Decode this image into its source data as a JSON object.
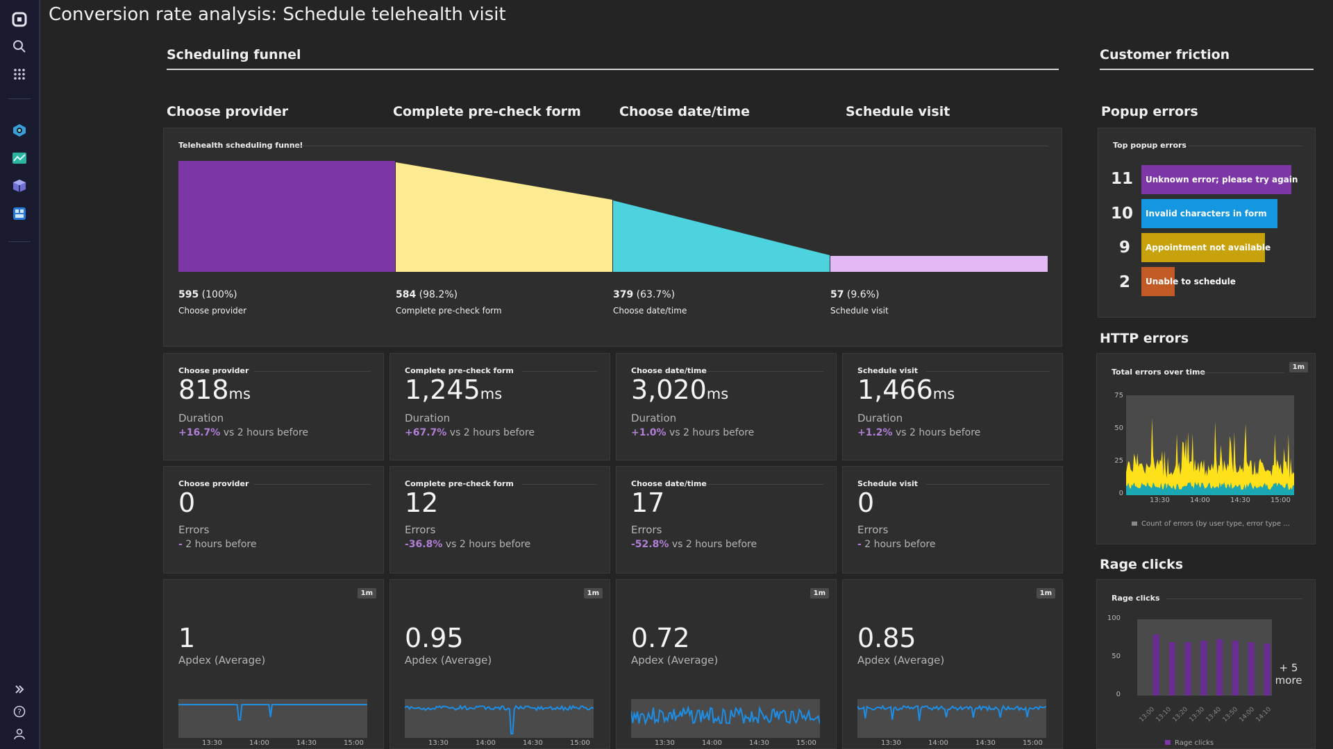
{
  "page_title": "Conversion rate analysis: Schedule telehealth visit",
  "sections": {
    "funnel": "Scheduling funnel",
    "friction": "Customer friction"
  },
  "columns": [
    "Choose provider",
    "Complete pre-check form",
    "Choose date/time",
    "Schedule visit"
  ],
  "funnel_panel": {
    "title": "Telehealth scheduling funnel",
    "steps": [
      {
        "count": "595",
        "pct": " (100%)",
        "name": "Choose provider",
        "color": "#7c36a5"
      },
      {
        "count": "584",
        "pct": " (98.2%)",
        "name": "Complete pre-check form",
        "color": "#fdeb92"
      },
      {
        "count": "379",
        "pct": " (63.7%)",
        "name": "Choose date/time",
        "color": "#4dd3de"
      },
      {
        "count": "57",
        "pct": " (9.6%)",
        "name": "Schedule visit",
        "color": "#e3b9f5"
      }
    ]
  },
  "duration_tiles": [
    {
      "title": "Choose provider",
      "value": "818",
      "unit": "ms",
      "label": "Duration",
      "delta": "+16.7%",
      "delta_suffix": " vs 2 hours before"
    },
    {
      "title": "Complete pre-check form",
      "value": "1,245",
      "unit": "ms",
      "label": "Duration",
      "delta": "+67.7%",
      "delta_suffix": " vs 2 hours before"
    },
    {
      "title": "Choose date/time",
      "value": "3,020",
      "unit": "ms",
      "label": "Duration",
      "delta": "+1.0%",
      "delta_suffix": " vs 2 hours before"
    },
    {
      "title": "Schedule visit",
      "value": "1,466",
      "unit": "ms",
      "label": "Duration",
      "delta": "+1.2%",
      "delta_suffix": " vs 2 hours before"
    }
  ],
  "error_tiles": [
    {
      "title": "Choose provider",
      "value": "0",
      "label": "Errors",
      "delta": "-",
      "delta_suffix": " 2 hours before"
    },
    {
      "title": "Complete pre-check form",
      "value": "12",
      "label": "Errors",
      "delta": "-36.8%",
      "delta_suffix": " vs 2 hours before"
    },
    {
      "title": "Choose date/time",
      "value": "17",
      "label": "Errors",
      "delta": "-52.8%",
      "delta_suffix": " vs 2 hours before"
    },
    {
      "title": "Schedule visit",
      "value": "0",
      "label": "Errors",
      "delta": "-",
      "delta_suffix": " 2 hours before"
    }
  ],
  "apdex_tiles": [
    {
      "value": "1",
      "label": "Apdex (Average)",
      "badge": "1m",
      "ticks": [
        "13:30",
        "14:00",
        "14:30",
        "15:00"
      ]
    },
    {
      "value": "0.95",
      "label": "Apdex (Average)",
      "badge": "1m",
      "ticks": [
        "13:30",
        "14:00",
        "14:30",
        "15:00"
      ]
    },
    {
      "value": "0.72",
      "label": "Apdex (Average)",
      "badge": "1m",
      "ticks": [
        "13:30",
        "14:00",
        "14:30",
        "15:00"
      ]
    },
    {
      "value": "0.85",
      "label": "Apdex (Average)",
      "badge": "1m",
      "ticks": [
        "13:30",
        "14:00",
        "14:30",
        "15:00"
      ]
    }
  ],
  "popup_errors": {
    "heading": "Popup errors",
    "panel_title": "Top popup errors",
    "items": [
      {
        "count": "11",
        "label": "Unknown error; please try again",
        "color": "#7c36a5"
      },
      {
        "count": "10",
        "label": "Invalid characters in form",
        "color": "#1496e0"
      },
      {
        "count": "9",
        "label": "Appointment not available",
        "color": "#c8a20d"
      },
      {
        "count": "2",
        "label": "Unable to schedule",
        "color": "#c25a26"
      }
    ]
  },
  "http_errors": {
    "heading": "HTTP errors",
    "panel_title": "Total errors over time",
    "badge": "1m",
    "y_ticks": [
      "75",
      "50",
      "25",
      "0"
    ],
    "x_ticks": [
      "13:30",
      "14:00",
      "14:30",
      "15:00"
    ],
    "legend": "Count of errors (by user type, error type ..."
  },
  "rage_clicks": {
    "heading": "Rage clicks",
    "panel_title": "Rage clicks",
    "y_ticks": [
      "100",
      "50",
      "0"
    ],
    "x_ticks": [
      "13:00",
      "13:10",
      "13:20",
      "13:30",
      "13:40",
      "13:50",
      "14:00",
      "14:10"
    ],
    "more_count": "+ 5",
    "more_label": "more",
    "legend": "Rage clicks"
  },
  "colors": {
    "accent_purple": "#7c36a5",
    "delta": "#b07fd8",
    "http_yellow": "#ffe11a",
    "http_teal": "#1ba8b5",
    "apdex_line": "#1d8ee6",
    "sidebar": "#1a1b2e"
  },
  "sidebar_icons": [
    "dynatrace-logo-icon",
    "search-icon",
    "apps-grid-icon",
    "synthetic-app-icon",
    "dashboard-app-icon",
    "cube-app-icon",
    "notebook-app-icon",
    "expand-icon",
    "help-icon",
    "user-icon"
  ]
}
